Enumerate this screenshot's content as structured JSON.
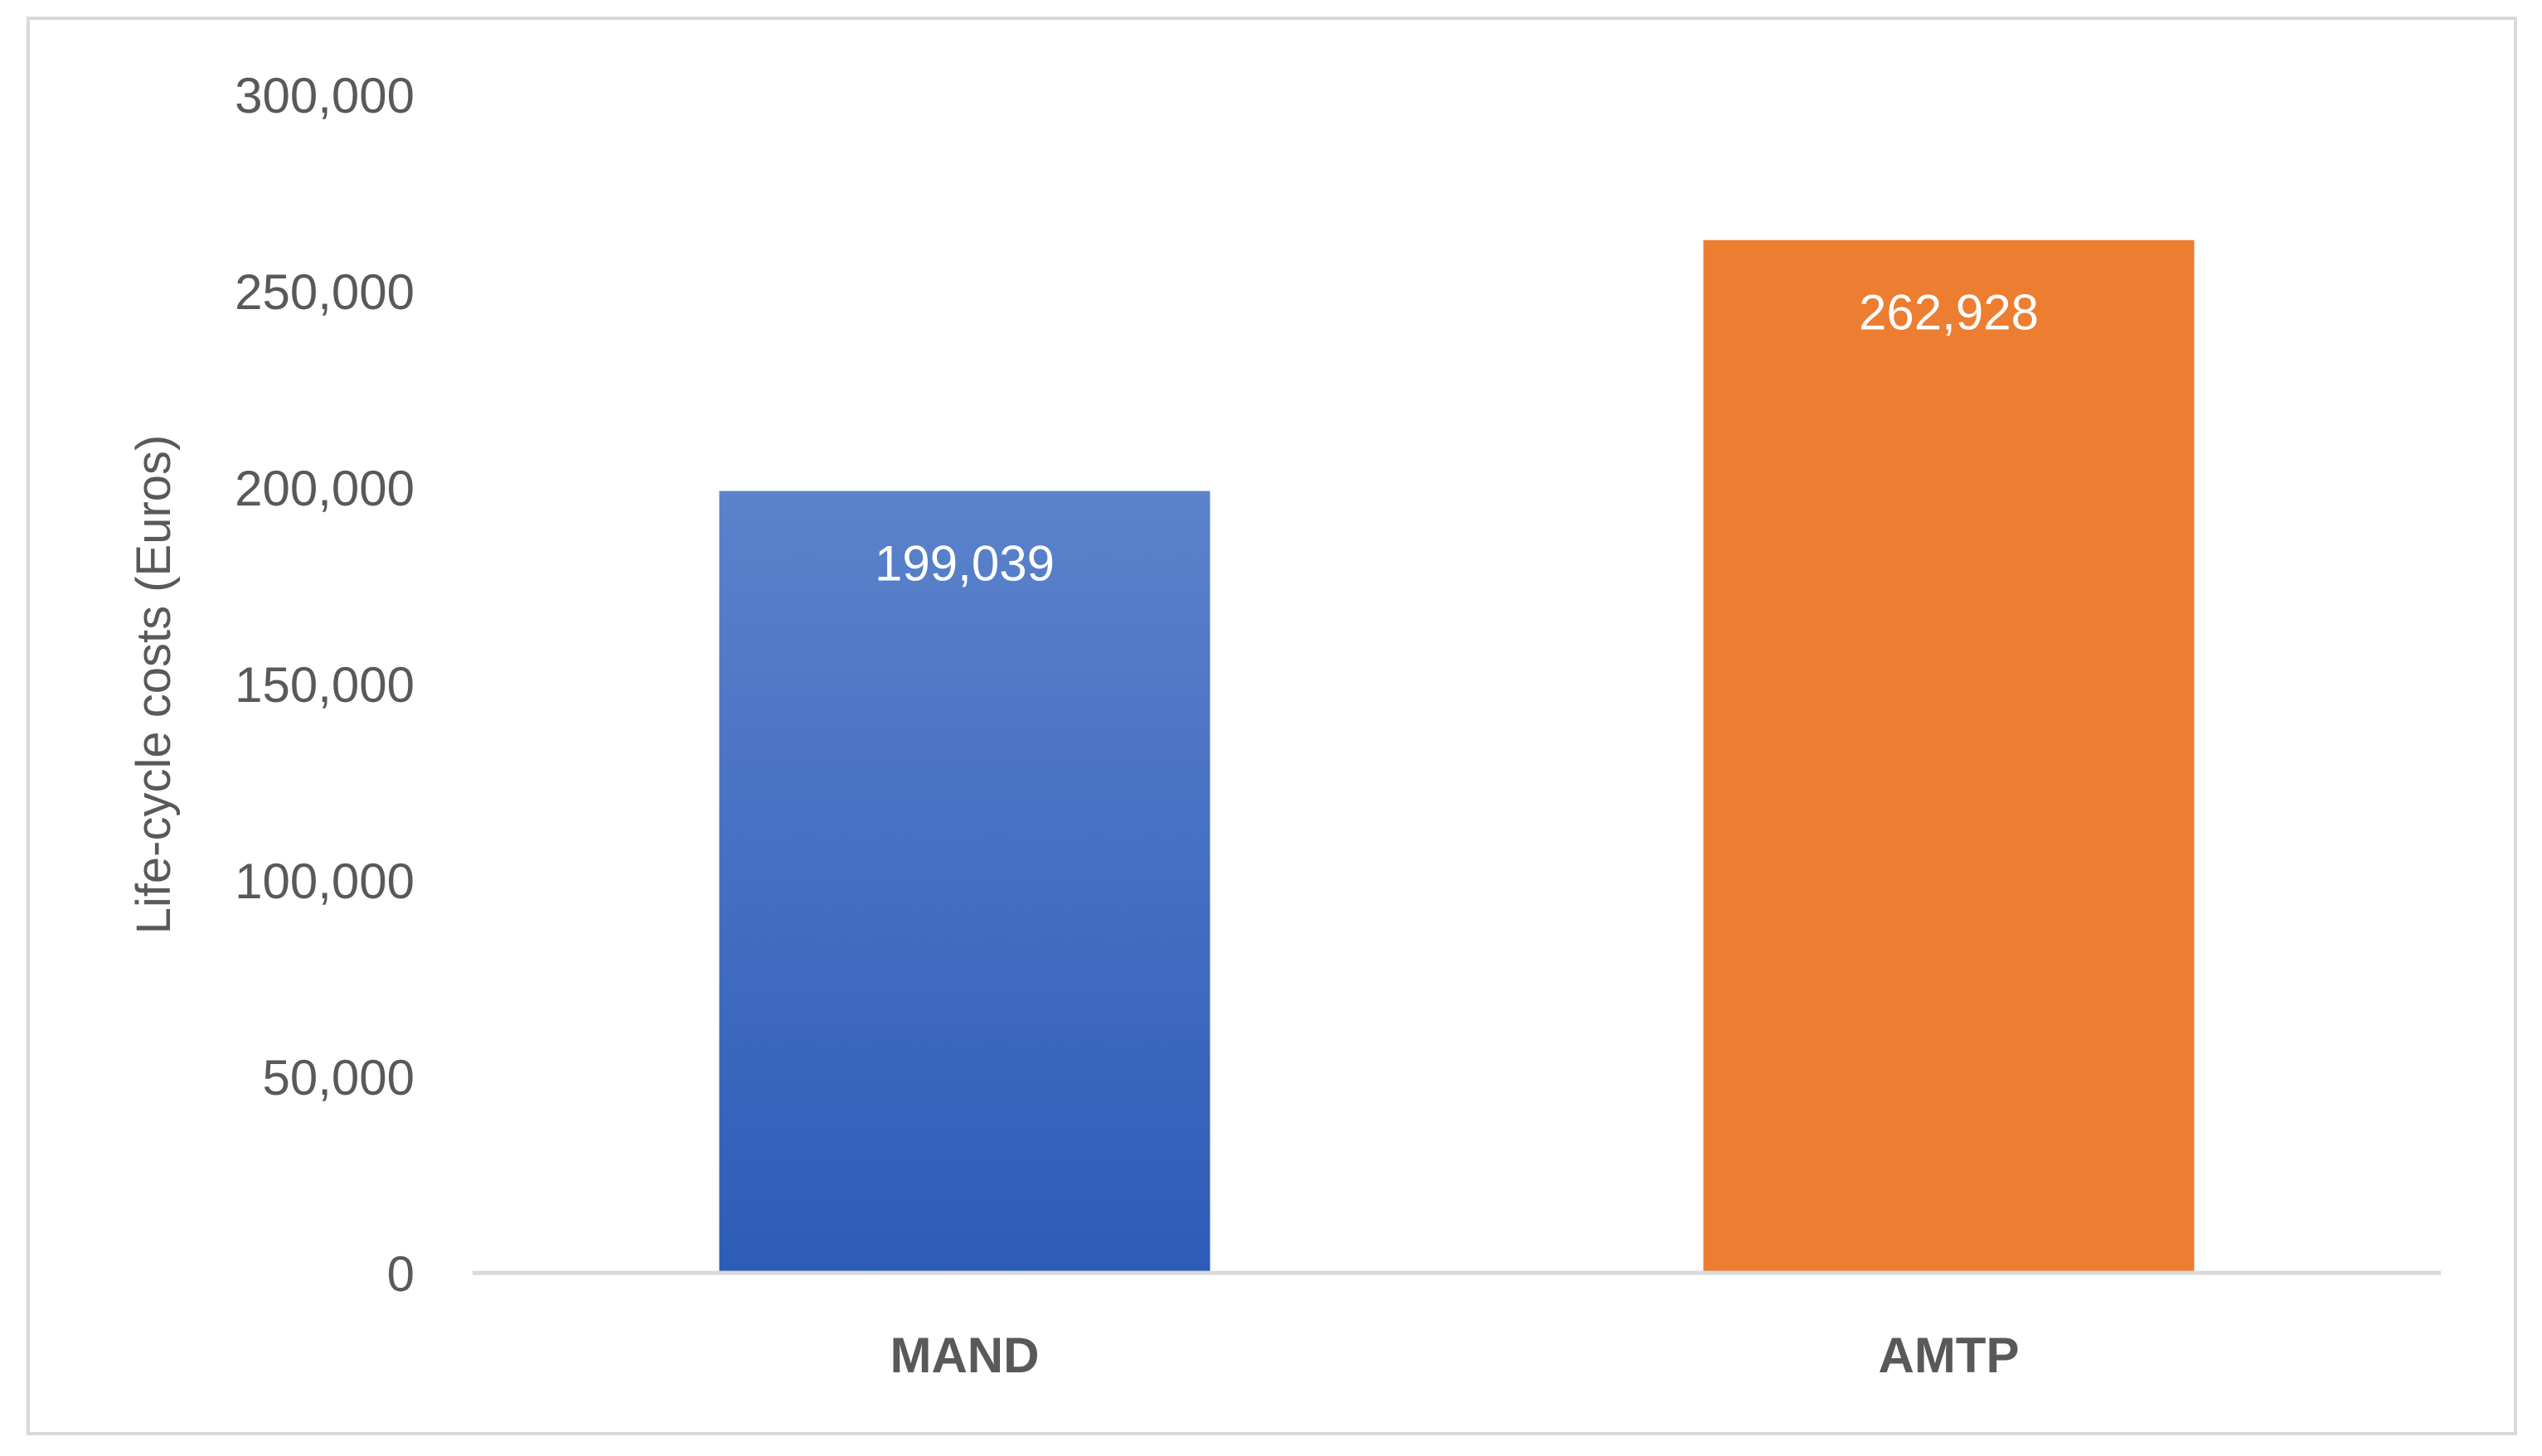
{
  "chart_data": {
    "type": "bar",
    "title": "",
    "xlabel": "",
    "ylabel": "Life-cycle costs (Euros)",
    "categories": [
      "MAND",
      "AMTP"
    ],
    "values": [
      199039,
      262928
    ],
    "value_labels": [
      "199,039",
      "262,928"
    ],
    "ylim": [
      0,
      300000
    ],
    "y_ticks": [
      0,
      50000,
      100000,
      150000,
      200000,
      250000,
      300000
    ],
    "y_tick_labels": [
      "0",
      "50,000",
      "100,000",
      "150,000",
      "200,000",
      "250,000",
      "300,000"
    ],
    "bar_colors": [
      "#4472C4",
      "#ED7D31"
    ],
    "grid": false,
    "legend": "none"
  }
}
